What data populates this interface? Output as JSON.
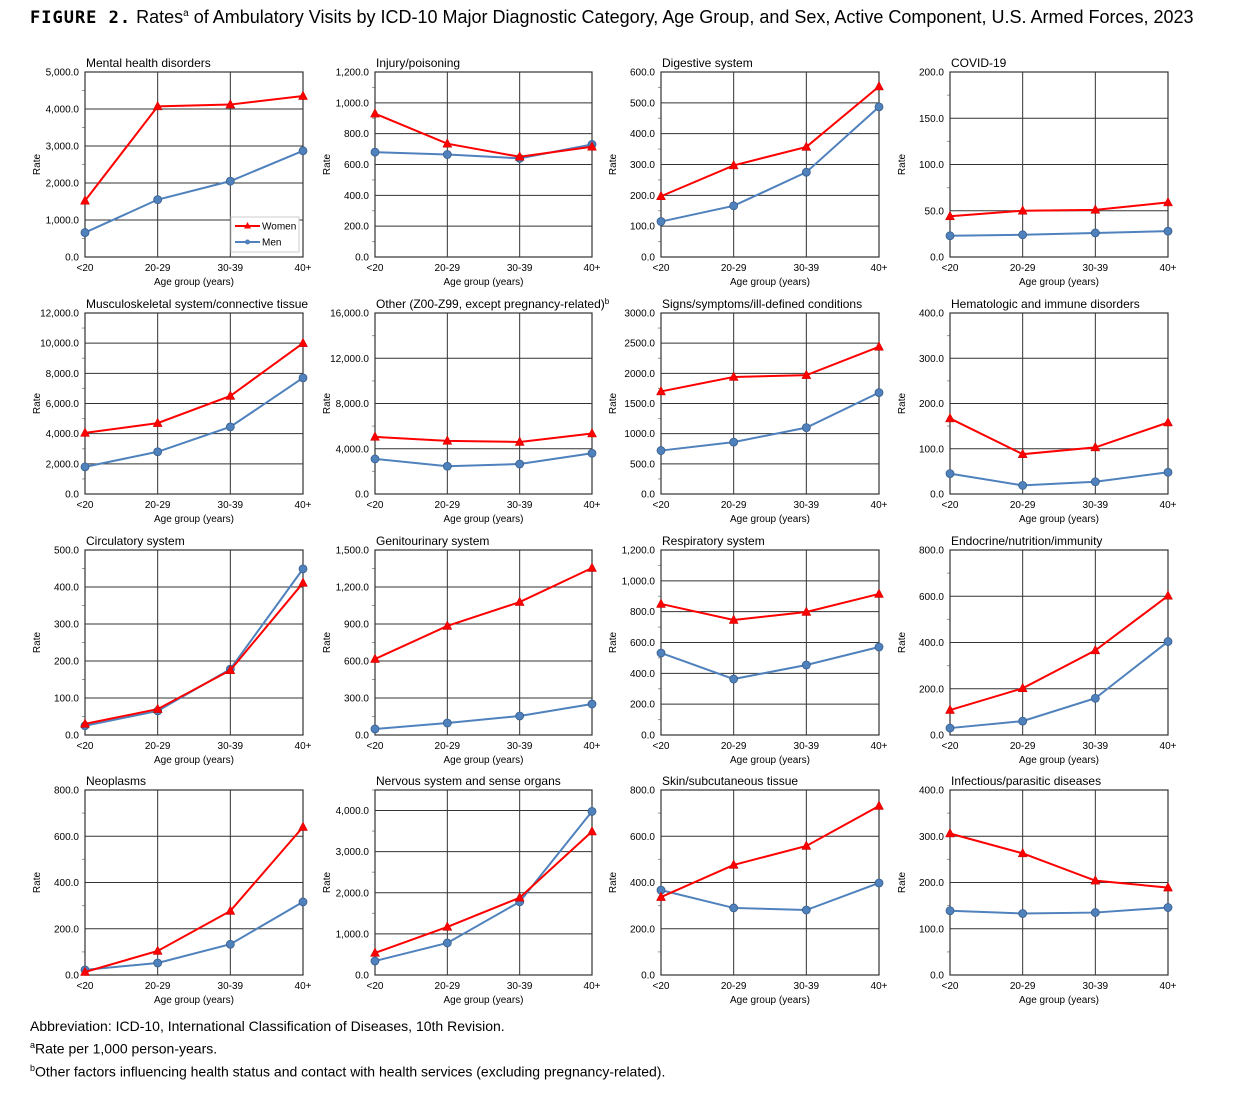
{
  "title": {
    "figure_label": "FIGURE 2.",
    "text_before": "Rates",
    "superscript": "a",
    "text_after": " of Ambulatory Visits by ICD-10 Major Diagnostic Category, Age Group, and Sex, Active Component, U.S. Armed Forces, 2023"
  },
  "colors": {
    "women": "#ff0000",
    "men": "#4f81bd"
  },
  "legend": {
    "placement": "bottom-right of first panel",
    "women": "Women",
    "men": "Men"
  },
  "footnotes": {
    "abbreviation": "Abbreviation: ICD-10, International Classification of Diseases, 10th Revision.",
    "a_mark": "a",
    "a": "Rate per 1,000 person-years.",
    "b_mark": "b",
    "b": "Other factors influencing health status and contact with health services (excluding pregnancy-related)."
  },
  "chart_data": [
    {
      "type": "line",
      "title": "Mental health disorders",
      "xlabel": "Age group (years)",
      "ylabel": "Rate",
      "categories": [
        "<20",
        "20-29",
        "30-39",
        "40+"
      ],
      "ylim": [
        0,
        5000
      ],
      "ystep": 1000,
      "tick_format": "comma",
      "grid": true,
      "series": [
        {
          "name": "Women",
          "values": [
            1520,
            4070,
            4120,
            4350
          ]
        },
        {
          "name": "Men",
          "values": [
            660,
            1550,
            2050,
            2870
          ]
        }
      ]
    },
    {
      "type": "line",
      "title": "Injury/poisoning",
      "xlabel": "Age group (years)",
      "ylabel": "Rate",
      "categories": [
        "<20",
        "20-29",
        "30-39",
        "40+"
      ],
      "ylim": [
        0,
        1200
      ],
      "ystep": 200,
      "tick_format": "comma",
      "grid": true,
      "series": [
        {
          "name": "Women",
          "values": [
            930,
            735,
            650,
            715
          ]
        },
        {
          "name": "Men",
          "values": [
            680,
            665,
            640,
            730
          ]
        }
      ]
    },
    {
      "type": "line",
      "title": "Digestive system",
      "xlabel": "Age group (years)",
      "ylabel": "Rate",
      "categories": [
        "<20",
        "20-29",
        "30-39",
        "40+"
      ],
      "ylim": [
        0,
        600
      ],
      "ystep": 100,
      "tick_format": "comma",
      "grid": true,
      "series": [
        {
          "name": "Women",
          "values": [
            197,
            297,
            357,
            553
          ]
        },
        {
          "name": "Men",
          "values": [
            115,
            166,
            275,
            487
          ]
        }
      ]
    },
    {
      "type": "line",
      "title": "COVID-19",
      "xlabel": "Age group (years)",
      "ylabel": "Rate",
      "categories": [
        "<20",
        "20-29",
        "30-39",
        "40+"
      ],
      "ylim": [
        0,
        200
      ],
      "ystep": 50,
      "tick_format": "comma",
      "grid": true,
      "series": [
        {
          "name": "Women",
          "values": [
            44,
            50,
            51,
            59
          ]
        },
        {
          "name": "Men",
          "values": [
            23,
            24,
            26,
            28
          ]
        }
      ]
    },
    {
      "type": "line",
      "title": "Musculoskeletal system/connective tissue",
      "xlabel": "Age group (years)",
      "ylabel": "Rate",
      "categories": [
        "<20",
        "20-29",
        "30-39",
        "40+"
      ],
      "ylim": [
        0,
        12000
      ],
      "ystep": 2000,
      "tick_format": "comma",
      "grid": true,
      "series": [
        {
          "name": "Women",
          "values": [
            4050,
            4700,
            6500,
            10000
          ]
        },
        {
          "name": "Men",
          "values": [
            1800,
            2800,
            4450,
            7700
          ]
        }
      ]
    },
    {
      "type": "line",
      "title": "Other (Z00-Z99, except pregnancy-related)",
      "title_superscript": "b",
      "xlabel": "Age group (years)",
      "ylabel": "Rate",
      "categories": [
        "<20",
        "20-29",
        "30-39",
        "40+"
      ],
      "ylim": [
        0,
        16000
      ],
      "ystep": 4000,
      "tick_format": "comma",
      "grid": true,
      "series": [
        {
          "name": "Women",
          "values": [
            5050,
            4700,
            4600,
            5350
          ]
        },
        {
          "name": "Men",
          "values": [
            3100,
            2450,
            2650,
            3600
          ]
        }
      ]
    },
    {
      "type": "line",
      "title": "Signs/symptoms/ill-defined conditions",
      "xlabel": "Age group (years)",
      "ylabel": "Rate",
      "categories": [
        "<20",
        "20-29",
        "30-39",
        "40+"
      ],
      "ylim": [
        0,
        3000
      ],
      "ystep": 500,
      "tick_format": "plain",
      "grid": true,
      "series": [
        {
          "name": "Women",
          "values": [
            1700,
            1940,
            1970,
            2440
          ]
        },
        {
          "name": "Men",
          "values": [
            720,
            860,
            1100,
            1680
          ]
        }
      ]
    },
    {
      "type": "line",
      "title": "Hematologic and immune disorders",
      "xlabel": "Age group (years)",
      "ylabel": "Rate",
      "categories": [
        "<20",
        "20-29",
        "30-39",
        "40+"
      ],
      "ylim": [
        0,
        400
      ],
      "ystep": 100,
      "tick_format": "comma",
      "grid": true,
      "series": [
        {
          "name": "Women",
          "values": [
            167,
            88,
            103,
            158
          ]
        },
        {
          "name": "Men",
          "values": [
            45,
            19,
            27,
            48
          ]
        }
      ]
    },
    {
      "type": "line",
      "title": "Circulatory system",
      "xlabel": "Age group (years)",
      "ylabel": "Rate",
      "categories": [
        "<20",
        "20-29",
        "30-39",
        "40+"
      ],
      "ylim": [
        0,
        500
      ],
      "ystep": 100,
      "tick_format": "comma",
      "grid": true,
      "series": [
        {
          "name": "Women",
          "values": [
            30,
            70,
            175,
            411
          ]
        },
        {
          "name": "Men",
          "values": [
            25,
            65,
            178,
            449
          ]
        }
      ]
    },
    {
      "type": "line",
      "title": "Genitourinary system",
      "xlabel": "Age group (years)",
      "ylabel": "Rate",
      "categories": [
        "<20",
        "20-29",
        "30-39",
        "40+"
      ],
      "ylim": [
        0,
        1500
      ],
      "ystep": 300,
      "tick_format": "comma",
      "grid": true,
      "series": [
        {
          "name": "Women",
          "values": [
            616,
            884,
            1078,
            1354
          ]
        },
        {
          "name": "Men",
          "values": [
            49,
            97,
            154,
            251
          ]
        }
      ]
    },
    {
      "type": "line",
      "title": "Respiratory system",
      "xlabel": "Age group (years)",
      "ylabel": "Rate",
      "categories": [
        "<20",
        "20-29",
        "30-39",
        "40+"
      ],
      "ylim": [
        0,
        1200
      ],
      "ystep": 200,
      "tick_format": "comma",
      "grid": true,
      "series": [
        {
          "name": "Women",
          "values": [
            850,
            746,
            798,
            915
          ]
        },
        {
          "name": "Men",
          "values": [
            532,
            363,
            454,
            571
          ]
        }
      ]
    },
    {
      "type": "line",
      "title": "Endocrine/nutrition/immunity",
      "xlabel": "Age group (years)",
      "ylabel": "Rate",
      "categories": [
        "<20",
        "20-29",
        "30-39",
        "40+"
      ],
      "ylim": [
        0,
        800
      ],
      "ystep": 200,
      "tick_format": "comma",
      "grid": true,
      "series": [
        {
          "name": "Women",
          "values": [
            108,
            202,
            366,
            602
          ]
        },
        {
          "name": "Men",
          "values": [
            30,
            60,
            159,
            404
          ]
        }
      ]
    },
    {
      "type": "line",
      "title": "Neoplasms",
      "xlabel": "Age group (years)",
      "ylabel": "Rate",
      "categories": [
        "<20",
        "20-29",
        "30-39",
        "40+"
      ],
      "ylim": [
        0,
        800
      ],
      "ystep": 200,
      "tick_format": "comma",
      "grid": true,
      "series": [
        {
          "name": "Women",
          "values": [
            13,
            104,
            277,
            640
          ]
        },
        {
          "name": "Men",
          "values": [
            22,
            52,
            133,
            316
          ]
        }
      ]
    },
    {
      "type": "line",
      "title": "Nervous system and sense organs",
      "xlabel": "Age group (years)",
      "ylabel": "Rate",
      "categories": [
        "<20",
        "20-29",
        "30-39",
        "40+"
      ],
      "ylim": [
        0,
        4500
      ],
      "ystep": 1000,
      "tick_format": "comma",
      "grid": true,
      "series": [
        {
          "name": "Women",
          "values": [
            537,
            1170,
            1880,
            3490
          ]
        },
        {
          "name": "Men",
          "values": [
            341,
            780,
            1780,
            3980
          ]
        }
      ]
    },
    {
      "type": "line",
      "title": "Skin/subcutaneous tissue",
      "xlabel": "Age group (years)",
      "ylabel": "Rate",
      "categories": [
        "<20",
        "20-29",
        "30-39",
        "40+"
      ],
      "ylim": [
        0,
        800
      ],
      "ystep": 200,
      "tick_format": "comma",
      "grid": true,
      "series": [
        {
          "name": "Women",
          "values": [
            337,
            476,
            558,
            731
          ]
        },
        {
          "name": "Men",
          "values": [
            367,
            290,
            281,
            398
          ]
        }
      ]
    },
    {
      "type": "line",
      "title": "Infectious/parasitic diseases",
      "xlabel": "Age group (years)",
      "ylabel": "Rate",
      "categories": [
        "<20",
        "20-29",
        "30-39",
        "40+"
      ],
      "ylim": [
        0,
        400
      ],
      "ystep": 100,
      "tick_format": "comma",
      "grid": true,
      "series": [
        {
          "name": "Women",
          "values": [
            306,
            263,
            204,
            189
          ]
        },
        {
          "name": "Men",
          "values": [
            139,
            133,
            135,
            146
          ]
        }
      ]
    }
  ]
}
